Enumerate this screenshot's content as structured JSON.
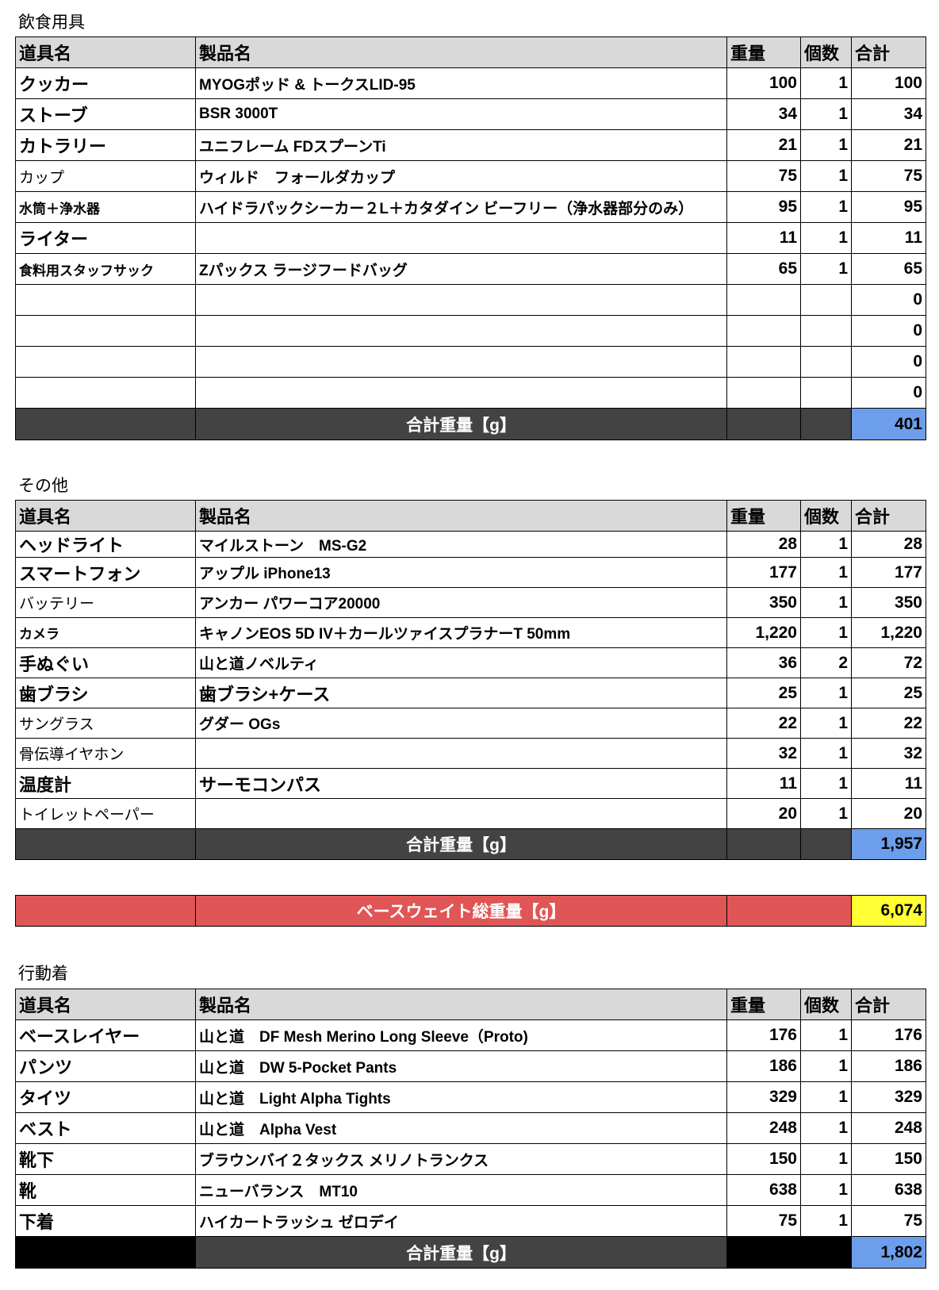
{
  "headers": {
    "name": "道具名",
    "product": "製品名",
    "weight": "重量",
    "qty": "個数",
    "total": "合計"
  },
  "total_label": "合計重量【g】",
  "colors": {
    "header_bg": "#d9d9d9",
    "total_bg": "#434343",
    "total_value_bg": "#6d9eeb",
    "base_bg": "#e05555",
    "base_value_bg": "#ffff33"
  },
  "sections": [
    {
      "title": "飲食用具",
      "items": [
        {
          "name": "クッカー",
          "product": "MYOGポッド & トークスLID-95",
          "weight": "100",
          "qty": "1",
          "total": "100",
          "bold": true
        },
        {
          "name": "ストーブ",
          "product": "BSR 3000T",
          "weight": "34",
          "qty": "1",
          "total": "34",
          "bold": true
        },
        {
          "name": "カトラリー",
          "product": "ユニフレーム FDスプーンTi",
          "weight": "21",
          "qty": "1",
          "total": "21",
          "bold": true
        },
        {
          "name": "カップ",
          "product": "ウィルド　フォールダカップ",
          "weight": "75",
          "qty": "1",
          "total": "75"
        },
        {
          "name": "水筒＋浄水器",
          "product": "ハイドラパックシーカー２L＋カタダイン ビーフリー（浄水器部分のみ）",
          "weight": "95",
          "qty": "1",
          "total": "95",
          "small": true
        },
        {
          "name": "ライター",
          "product": "",
          "weight": "11",
          "qty": "1",
          "total": "11",
          "bold": true
        },
        {
          "name": "食料用スタッフサック",
          "product": "Zパックス ラージフードバッグ",
          "weight": "65",
          "qty": "1",
          "total": "65",
          "small": true
        },
        {
          "name": "",
          "product": "",
          "weight": "",
          "qty": "",
          "total": "0"
        },
        {
          "name": "",
          "product": "",
          "weight": "",
          "qty": "",
          "total": "0"
        },
        {
          "name": "",
          "product": "",
          "weight": "",
          "qty": "",
          "total": "0"
        },
        {
          "name": "",
          "product": "",
          "weight": "",
          "qty": "",
          "total": "0"
        }
      ],
      "sum": "401"
    },
    {
      "title": "その他",
      "items": [
        {
          "name": "ヘッドライト",
          "product": "マイルストーン　MS-G2",
          "weight": "28",
          "qty": "1",
          "total": "28",
          "bold": true
        },
        {
          "name": "スマートフォン",
          "product": "アップル iPhone13",
          "weight": "177",
          "qty": "1",
          "total": "177",
          "bold": true
        },
        {
          "name": "バッテリー",
          "product": "アンカー パワーコア20000",
          "weight": "350",
          "qty": "1",
          "total": "350"
        },
        {
          "name": "カメラ",
          "product": "キャノンEOS 5D IV＋カールツァイスプラナーT 50mm",
          "weight": "1,220",
          "qty": "1",
          "total": "1,220",
          "small": true
        },
        {
          "name": "手ぬぐい",
          "product": "山と道ノベルティ",
          "weight": "36",
          "qty": "2",
          "total": "72",
          "bold": true
        },
        {
          "name": "歯ブラシ",
          "product": "歯ブラシ+ケース",
          "weight": "25",
          "qty": "1",
          "total": "25",
          "bold": true,
          "product_bold": true
        },
        {
          "name": "サングラス",
          "product": "グダー OGs",
          "weight": "22",
          "qty": "1",
          "total": "22"
        },
        {
          "name": "骨伝導イヤホン",
          "product": "",
          "weight": "32",
          "qty": "1",
          "total": "32"
        },
        {
          "name": "温度計",
          "product": "サーモコンパス",
          "weight": "11",
          "qty": "1",
          "total": "11",
          "bold": true,
          "product_bold": true
        },
        {
          "name": "トイレットペーパー",
          "product": "",
          "weight": "20",
          "qty": "1",
          "total": "20"
        }
      ],
      "sum": "1,957"
    },
    {
      "title": "行動着",
      "items": [
        {
          "name": "ベースレイヤー",
          "product": "山と道　DF Mesh Merino Long Sleeve（Proto)",
          "weight": "176",
          "qty": "1",
          "total": "176",
          "bold": true
        },
        {
          "name": "パンツ",
          "product": "山と道　DW 5-Pocket Pants",
          "weight": "186",
          "qty": "1",
          "total": "186",
          "bold": true
        },
        {
          "name": "タイツ",
          "product": "山と道　Light Alpha Tights",
          "weight": "329",
          "qty": "1",
          "total": "329",
          "bold": true
        },
        {
          "name": "ベスト",
          "product": "山と道　Alpha Vest",
          "weight": "248",
          "qty": "1",
          "total": "248",
          "bold": true
        },
        {
          "name": "靴下",
          "product": "ブラウンバイ２タックス メリノトランクス",
          "weight": "150",
          "qty": "1",
          "total": "150",
          "bold": true
        },
        {
          "name": "靴",
          "product": "ニューバランス　MT10",
          "weight": "638",
          "qty": "1",
          "total": "638",
          "bold": true
        },
        {
          "name": "下着",
          "product": "ハイカートラッシュ ゼロデイ",
          "weight": "75",
          "qty": "1",
          "total": "75",
          "bold": true
        }
      ],
      "sum": "1,802"
    }
  ],
  "base_weight": {
    "label": "ベースウェイト総重量【g】",
    "value": "6,074"
  }
}
